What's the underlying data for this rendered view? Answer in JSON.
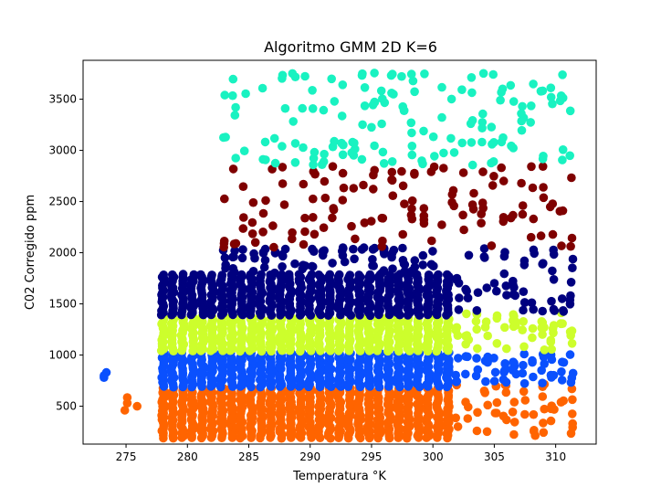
{
  "chart_data": {
    "type": "scatter",
    "title": "Algoritmo GMM 2D  K=6",
    "xlabel": "Temperatura °K",
    "ylabel": "C02 Corregido ppm",
    "xlim": [
      271.5,
      313.3
    ],
    "ylim": [
      130,
      3880
    ],
    "xticks": [
      275,
      280,
      285,
      290,
      295,
      300,
      305,
      310
    ],
    "yticks": [
      500,
      1000,
      1500,
      2000,
      2500,
      3000,
      3500
    ],
    "grid": false,
    "legend": "none",
    "colors": {
      "cluster_cyan": "#19f2c1",
      "cluster_maroon": "#7f0000",
      "cluster_navy": "#00007f",
      "cluster_lime": "#cdfe2c",
      "cluster_blue": "#0a50fe",
      "cluster_orange": "#ff6400"
    },
    "clusters": [
      {
        "color": "cluster_orange",
        "x_range": [
          278,
          301.2
        ],
        "y_range": [
          190,
          690
        ],
        "extra_points": [
          [
            275.1,
            585
          ],
          [
            275.1,
            530
          ],
          [
            275.9,
            500
          ],
          [
            274.9,
            460
          ]
        ]
      },
      {
        "color": "cluster_blue",
        "x_range": [
          278,
          301.2
        ],
        "y_range": [
          690,
          1040
        ],
        "extra_points": [
          [
            273.2,
            800
          ],
          [
            273.4,
            830
          ],
          [
            273.2,
            780
          ]
        ]
      },
      {
        "color": "cluster_lime",
        "x_range": [
          278,
          301.2
        ],
        "y_range": [
          1040,
          1390
        ]
      },
      {
        "color": "cluster_navy",
        "x_range": [
          278,
          301.2
        ],
        "y_range": [
          1390,
          1800
        ]
      },
      {
        "color": "cluster_orange",
        "x_range": [
          302,
          311.3
        ],
        "y_range": [
          210,
          720
        ]
      },
      {
        "color": "cluster_blue",
        "x_range": [
          302,
          311.3
        ],
        "y_range": [
          720,
          1010
        ]
      },
      {
        "color": "cluster_lime",
        "x_range": [
          302,
          311.3
        ],
        "y_range": [
          1040,
          1420
        ]
      },
      {
        "color": "cluster_navy",
        "x_range": [
          302,
          311.3
        ],
        "y_range": [
          1420,
          2050
        ]
      },
      {
        "color": "cluster_navy",
        "x_range": [
          283,
          300
        ],
        "y_range": [
          1800,
          2050
        ]
      },
      {
        "color": "cluster_maroon",
        "x_range": [
          283,
          311.3
        ],
        "y_range": [
          2050,
          2850
        ]
      },
      {
        "color": "cluster_cyan",
        "x_range": [
          283,
          311.3
        ],
        "y_range": [
          2850,
          3760
        ]
      }
    ]
  }
}
